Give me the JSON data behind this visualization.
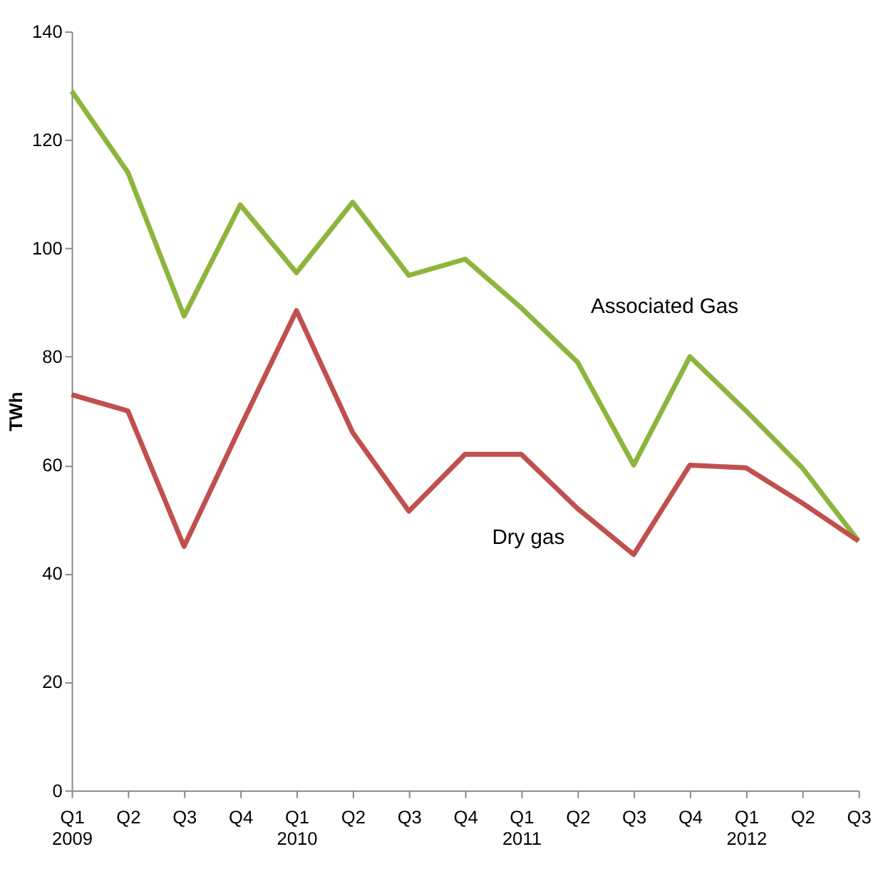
{
  "chart_data": {
    "type": "line",
    "ylabel": "TWh",
    "categories": [
      "Q1\n2009",
      "Q2",
      "Q3",
      "Q4",
      "Q1\n2010",
      "Q2",
      "Q3",
      "Q4",
      "Q1\n2011",
      "Q2",
      "Q3",
      "Q4",
      "Q1\n2012",
      "Q2",
      "Q3"
    ],
    "series": [
      {
        "name": "Associated Gas",
        "color": "#8db53c",
        "values": [
          129,
          114,
          87.5,
          108,
          95.5,
          108.5,
          95,
          98,
          89,
          79,
          60,
          80,
          70,
          59.5,
          46
        ]
      },
      {
        "name": "Dry gas",
        "color": "#c0504d",
        "values": [
          73,
          70,
          45,
          67,
          88.5,
          66,
          51.5,
          62,
          62,
          52,
          43.5,
          60,
          59.5,
          53,
          46
        ]
      }
    ],
    "ylim": [
      0,
      140
    ],
    "yticks": [
      0,
      20,
      40,
      60,
      80,
      100,
      120,
      140
    ],
    "grid": false,
    "legend": false,
    "marker": "none",
    "line_style": "solid"
  }
}
